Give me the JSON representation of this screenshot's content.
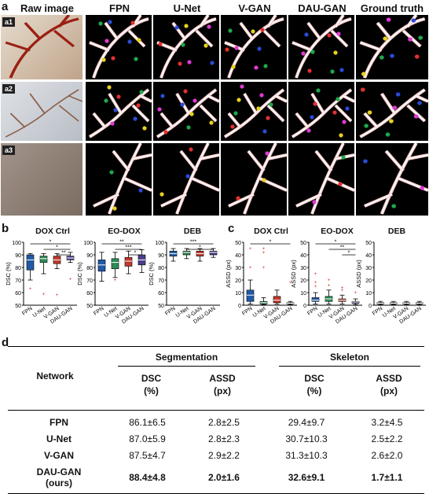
{
  "panel_a": {
    "letter": "a",
    "columns": [
      "Raw image",
      "FPN",
      "U-Net",
      "V-GAN",
      "DAU-GAN",
      "Ground truth"
    ],
    "rows": [
      "a1",
      "a2",
      "a3"
    ]
  },
  "panel_b": {
    "letter": "b",
    "y_label": "DSC (%)",
    "x_categories": [
      "FPN",
      "U-Net",
      "V-GAN",
      "DAU-GAN"
    ],
    "charts": [
      {
        "title": "DOX Ctrl",
        "sig": [
          "*",
          "*",
          "**"
        ]
      },
      {
        "title": "EO-DOX",
        "sig": [
          "**",
          "***",
          "*"
        ]
      },
      {
        "title": "DEB",
        "sig": [
          "***",
          "*"
        ]
      }
    ]
  },
  "panel_c": {
    "letter": "c",
    "y_label": "ASSD (px)",
    "x_categories": [
      "FPN",
      "U-Net",
      "V-GAN",
      "DAU-GAN"
    ],
    "charts": [
      {
        "title": "DOX Ctrl",
        "sig": [
          "*"
        ]
      },
      {
        "title": "EO-DOX",
        "sig": [
          "*",
          "**",
          "*"
        ]
      },
      {
        "title": "DEB",
        "sig": []
      }
    ]
  },
  "panel_d": {
    "letter": "d",
    "header_network": "Network",
    "header_segmentation": "Segmentation",
    "header_skeleton": "Skeleton",
    "sub_dsc": "DSC",
    "sub_assd": "ASSD",
    "unit_pct": "(%)",
    "unit_px": "(px)",
    "rows": [
      {
        "network": "FPN",
        "seg_dsc": "86.1±6.5",
        "seg_assd": "2.8±2.5",
        "sk_dsc": "29.4±9.7",
        "sk_assd": "3.2±4.5"
      },
      {
        "network": "U-Net",
        "seg_dsc": "87.0±5.9",
        "seg_assd": "2.8±2.3",
        "sk_dsc": "30.7±10.3",
        "sk_assd": "2.5±2.2"
      },
      {
        "network": "V-GAN",
        "seg_dsc": "87.5±4.7",
        "seg_assd": "2.9±2.2",
        "sk_dsc": "31.3±10.3",
        "sk_assd": "2.6±2.0"
      }
    ],
    "last_row": {
      "network": "DAU-GAN",
      "network_sub": "(ours)",
      "seg_dsc": "88.4±4.8",
      "seg_assd": "2.0±1.6",
      "sk_dsc": "32.6±9.1",
      "sk_assd": "1.7±1.1"
    }
  },
  "chart_data": [
    {
      "type": "box",
      "title": "DOX Ctrl",
      "ylabel": "DSC (%)",
      "ylim": [
        50,
        100
      ],
      "categories": [
        "FPN",
        "U-Net",
        "V-GAN",
        "DAU-GAN"
      ],
      "series": [
        {
          "min": 70,
          "q1": 78,
          "median": 86,
          "q3": 90,
          "max": 91,
          "outliers": [
            63
          ]
        },
        {
          "min": 75,
          "q1": 84,
          "median": 87,
          "q3": 89,
          "max": 91,
          "outliers": [
            59
          ]
        },
        {
          "min": 79,
          "q1": 83,
          "median": 86,
          "q3": 89,
          "max": 91,
          "outliers": [
            58
          ]
        },
        {
          "min": 84,
          "q1": 86,
          "median": 87.5,
          "q3": 89,
          "max": 92,
          "outliers": [
            71
          ]
        }
      ],
      "colors": [
        "#1f5aa6",
        "#2e8b57",
        "#c0392b",
        "#4b3f8c"
      ]
    },
    {
      "type": "box",
      "title": "EO-DOX",
      "ylabel": "DSC (%)",
      "ylim": [
        50,
        100
      ],
      "categories": [
        "FPN",
        "U-Net",
        "V-GAN",
        "DAU-GAN"
      ],
      "series": [
        {
          "min": 69,
          "q1": 77,
          "median": 82,
          "q3": 86,
          "max": 92,
          "outliers": []
        },
        {
          "min": 72,
          "q1": 79,
          "median": 84,
          "q3": 87,
          "max": 92,
          "outliers": [
            70
          ]
        },
        {
          "min": 75,
          "q1": 81,
          "median": 85,
          "q3": 88,
          "max": 93,
          "outliers": []
        },
        {
          "min": 76,
          "q1": 82,
          "median": 86,
          "q3": 90,
          "max": 94,
          "outliers": []
        }
      ],
      "colors": [
        "#1f5aa6",
        "#2e8b57",
        "#c0392b",
        "#4b3f8c"
      ]
    },
    {
      "type": "box",
      "title": "DEB",
      "ylabel": "DSC (%)",
      "ylim": [
        50,
        100
      ],
      "categories": [
        "FPN",
        "U-Net",
        "V-GAN",
        "DAU-GAN"
      ],
      "series": [
        {
          "min": 85,
          "q1": 89,
          "median": 91,
          "q3": 93,
          "max": 95,
          "outliers": []
        },
        {
          "min": 87,
          "q1": 90,
          "median": 92,
          "q3": 93,
          "max": 95,
          "outliers": []
        },
        {
          "min": 85,
          "q1": 89,
          "median": 91,
          "q3": 93,
          "max": 95,
          "outliers": []
        },
        {
          "min": 88,
          "q1": 90,
          "median": 92,
          "q3": 93,
          "max": 95,
          "outliers": []
        }
      ],
      "colors": [
        "#1f5aa6",
        "#2e8b57",
        "#c0392b",
        "#4b3f8c"
      ]
    },
    {
      "type": "box",
      "title": "DOX Ctrl",
      "ylabel": "ASSD (px)",
      "ylim": [
        0,
        50
      ],
      "categories": [
        "FPN",
        "U-Net",
        "V-GAN",
        "DAU-GAN"
      ],
      "series": [
        {
          "min": 1,
          "q1": 3,
          "median": 8,
          "q3": 12,
          "max": 20,
          "outliers": [
            45,
            30
          ]
        },
        {
          "min": 0.5,
          "q1": 1,
          "median": 2,
          "q3": 3,
          "max": 6,
          "outliers": [
            45,
            42,
            30
          ]
        },
        {
          "min": 1,
          "q1": 2,
          "median": 4,
          "q3": 7,
          "max": 12,
          "outliers": []
        },
        {
          "min": 0.5,
          "q1": 1,
          "median": 1.5,
          "q3": 2,
          "max": 3,
          "outliers": [
            18
          ]
        }
      ],
      "colors": [
        "#1f5aa6",
        "#2e8b57",
        "#c0392b",
        "#4b3f8c"
      ]
    },
    {
      "type": "box",
      "title": "EO-DOX",
      "ylabel": "ASSD (px)",
      "ylim": [
        0,
        50
      ],
      "categories": [
        "FPN",
        "U-Net",
        "V-GAN",
        "DAU-GAN"
      ],
      "series": [
        {
          "min": 1,
          "q1": 3,
          "median": 4,
          "q3": 6,
          "max": 10,
          "outliers": [
            25,
            18,
            15
          ]
        },
        {
          "min": 1,
          "q1": 3,
          "median": 5,
          "q3": 7,
          "max": 12,
          "outliers": [
            20,
            16
          ]
        },
        {
          "min": 1,
          "q1": 3,
          "median": 4,
          "q3": 5,
          "max": 8,
          "outliers": [
            14,
            12
          ]
        },
        {
          "min": 0.5,
          "q1": 1.5,
          "median": 2.5,
          "q3": 3,
          "max": 5,
          "outliers": [
            10
          ]
        }
      ],
      "colors": [
        "#1f5aa6",
        "#2e8b57",
        "#c0392b",
        "#4b3f8c"
      ]
    },
    {
      "type": "box",
      "title": "DEB",
      "ylabel": "ASSD (px)",
      "ylim": [
        0,
        50
      ],
      "categories": [
        "FPN",
        "U-Net",
        "V-GAN",
        "DAU-GAN"
      ],
      "series": [
        {
          "min": 0.5,
          "q1": 1,
          "median": 1.5,
          "q3": 2,
          "max": 3,
          "outliers": []
        },
        {
          "min": 0.5,
          "q1": 1,
          "median": 1.5,
          "q3": 2,
          "max": 3,
          "outliers": []
        },
        {
          "min": 0.5,
          "q1": 1,
          "median": 1.5,
          "q3": 2,
          "max": 3,
          "outliers": []
        },
        {
          "min": 0.5,
          "q1": 1,
          "median": 1.5,
          "q3": 2,
          "max": 3,
          "outliers": []
        }
      ],
      "colors": [
        "#1f5aa6",
        "#2e8b57",
        "#c0392b",
        "#4b3f8c"
      ]
    }
  ]
}
